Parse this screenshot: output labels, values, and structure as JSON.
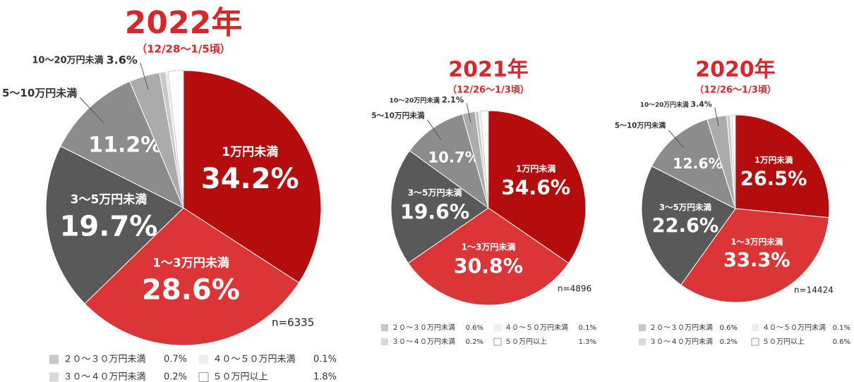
{
  "chart_data": [
    {
      "type": "pie",
      "title": "2022年",
      "subtitle": "（12/28〜1/5頃）",
      "note": "n=6335",
      "categories": [
        "1万円未満",
        "1〜3万円未満",
        "3〜5万円未満",
        "5〜10万円未満",
        "10〜20万円未満",
        "２０〜３０万円未満",
        "３０〜４０万円未満",
        "４０〜５０万円未満",
        "５０万円以上"
      ],
      "values": [
        34.2,
        28.6,
        19.7,
        11.2,
        3.6,
        0.7,
        0.2,
        0.1,
        1.8
      ],
      "value_labels": [
        "34.2%",
        "28.6%",
        "19.7%",
        "11.2%",
        "3.6%",
        "0.7%",
        "0.2%",
        "0.1%",
        "1.8%"
      ],
      "colors": [
        "#b50d0e",
        "#db3537",
        "#595959",
        "#8c8c8c",
        "#ababab",
        "#c8c8c8",
        "#d9d9d9",
        "#eeeeee",
        "#ffffff"
      ]
    },
    {
      "type": "pie",
      "title": "2021年",
      "subtitle": "（12/26〜1/3頃）",
      "note": "n=4896",
      "categories": [
        "1万円未満",
        "1〜3万円未満",
        "3〜5万円未満",
        "5〜10万円未満",
        "10〜20万円未満",
        "２０〜３０万円未満",
        "３０〜４０万円未満",
        "４０〜５０万円未満",
        "５０万円以上"
      ],
      "values": [
        34.6,
        30.8,
        19.6,
        10.7,
        2.1,
        0.6,
        0.2,
        0.1,
        1.3
      ],
      "value_labels": [
        "34.6%",
        "30.8%",
        "19.6%",
        "10.7%",
        "2.1%",
        "0.6%",
        "0.2%",
        "0.1%",
        "1.3%"
      ],
      "colors": [
        "#b50d0e",
        "#db3537",
        "#595959",
        "#8c8c8c",
        "#ababab",
        "#c8c8c8",
        "#d9d9d9",
        "#eeeeee",
        "#ffffff"
      ]
    },
    {
      "type": "pie",
      "title": "2020年",
      "subtitle": "（12/26〜1/3頃）",
      "note": "n=14424",
      "categories": [
        "1万円未満",
        "1〜3万円未満",
        "3〜5万円未満",
        "5〜10万円未満",
        "10〜20万円未満",
        "２０〜３０万円未満",
        "３０〜４０万円未満",
        "４０〜５０万円未満",
        "５０万円以上"
      ],
      "values": [
        26.5,
        33.3,
        22.6,
        12.6,
        3.4,
        0.6,
        0.2,
        0.1,
        0.6
      ],
      "value_labels": [
        "26.5%",
        "33.3%",
        "22.6%",
        "12.6%",
        "3.4%",
        "0.6%",
        "0.2%",
        "0.1%",
        "0.6%"
      ],
      "colors": [
        "#b50d0e",
        "#db3537",
        "#595959",
        "#8c8c8c",
        "#ababab",
        "#c8c8c8",
        "#d9d9d9",
        "#eeeeee",
        "#ffffff"
      ]
    }
  ]
}
